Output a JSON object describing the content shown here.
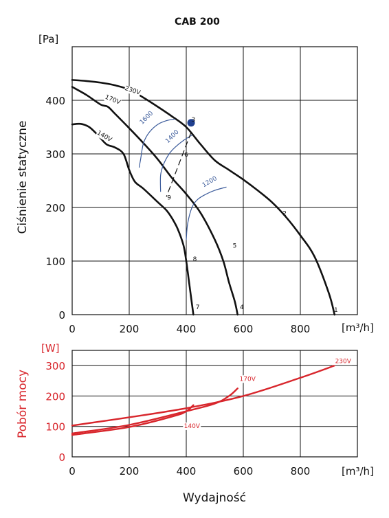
{
  "chart_data": [
    {
      "type": "line",
      "title": "CAB 200",
      "xlabel": "",
      "ylabel": "Ciśnienie statyczne",
      "x_unit": "[m³/h]",
      "y_unit": "[Pa]",
      "xlim": [
        0,
        1000
      ],
      "ylim": [
        0,
        500
      ],
      "xticks": [
        0,
        200,
        400,
        600,
        800
      ],
      "yticks": [
        0,
        100,
        200,
        300,
        400
      ],
      "grid": true,
      "series": [
        {
          "name": "230V",
          "color": "#111111",
          "x": [
            0,
            50,
            100,
            150,
            200,
            250,
            300,
            350,
            400,
            450,
            500,
            550,
            600,
            650,
            700,
            750,
            800,
            850,
            900,
            920
          ],
          "y": [
            438,
            436,
            433,
            428,
            420,
            405,
            388,
            370,
            350,
            318,
            288,
            270,
            252,
            232,
            210,
            182,
            148,
            108,
            40,
            0
          ]
        },
        {
          "name": "170V",
          "color": "#111111",
          "x": [
            0,
            50,
            100,
            125,
            150,
            200,
            250,
            300,
            350,
            400,
            450,
            500,
            530,
            550,
            570,
            580
          ],
          "y": [
            425,
            410,
            392,
            388,
            375,
            348,
            320,
            290,
            255,
            225,
            190,
            140,
            100,
            60,
            25,
            0
          ]
        },
        {
          "name": "140V",
          "color": "#111111",
          "x": [
            0,
            30,
            60,
            90,
            120,
            150,
            180,
            200,
            220,
            250,
            300,
            330,
            350,
            370,
            390,
            400,
            410,
            420,
            425
          ],
          "y": [
            355,
            356,
            350,
            335,
            318,
            312,
            300,
            270,
            248,
            235,
            210,
            195,
            180,
            160,
            130,
            100,
            60,
            20,
            0
          ]
        },
        {
          "name": "1600",
          "color": "#3a5a9a",
          "x": [
            235,
            240,
            250,
            270,
            300,
            330,
            360
          ],
          "y": [
            275,
            290,
            320,
            340,
            355,
            362,
            365
          ]
        },
        {
          "name": "1400",
          "color": "#3a5a9a",
          "x": [
            310,
            310,
            320,
            340,
            360,
            390,
            420
          ],
          "y": [
            230,
            260,
            280,
            300,
            312,
            325,
            335
          ]
        },
        {
          "name": "1200",
          "color": "#3a5a9a",
          "x": [
            400,
            405,
            420,
            440,
            470,
            500,
            540
          ],
          "y": [
            140,
            170,
            200,
            215,
            225,
            232,
            238
          ]
        }
      ],
      "working_points": [
        {
          "label": "1",
          "x": 925,
          "y": 5
        },
        {
          "label": "2",
          "x": 745,
          "y": 185
        },
        {
          "label": "3",
          "x": 425,
          "y": 360
        },
        {
          "label": "4",
          "x": 595,
          "y": 10
        },
        {
          "label": "5",
          "x": 570,
          "y": 125
        },
        {
          "label": "6",
          "x": 400,
          "y": 295
        },
        {
          "label": "7",
          "x": 440,
          "y": 10
        },
        {
          "label": "8",
          "x": 430,
          "y": 100
        },
        {
          "label": "9",
          "x": 340,
          "y": 215
        }
      ],
      "operating_point": {
        "x": 417,
        "y": 358
      }
    },
    {
      "type": "line",
      "title": "",
      "xlabel": "Wydajność",
      "ylabel": "Pobór mocy",
      "x_unit": "[m³/h]",
      "y_unit": "[W]",
      "xlim": [
        0,
        1000
      ],
      "ylim": [
        0,
        350
      ],
      "xticks": [
        0,
        200,
        400,
        600,
        800
      ],
      "yticks": [
        0,
        100,
        200,
        300
      ],
      "grid": true,
      "series": [
        {
          "name": "230V",
          "color": "#d8262c",
          "x": [
            0,
            200,
            400,
            600,
            800,
            920
          ],
          "y": [
            103,
            130,
            160,
            200,
            260,
            300
          ]
        },
        {
          "name": "170V",
          "color": "#d8262c",
          "x": [
            0,
            200,
            400,
            500,
            550,
            580
          ],
          "y": [
            77,
            105,
            150,
            175,
            200,
            225
          ]
        },
        {
          "name": "140V",
          "color": "#d8262c",
          "x": [
            0,
            200,
            360,
            400,
            425
          ],
          "y": [
            72,
            98,
            135,
            150,
            170
          ]
        }
      ]
    }
  ]
}
